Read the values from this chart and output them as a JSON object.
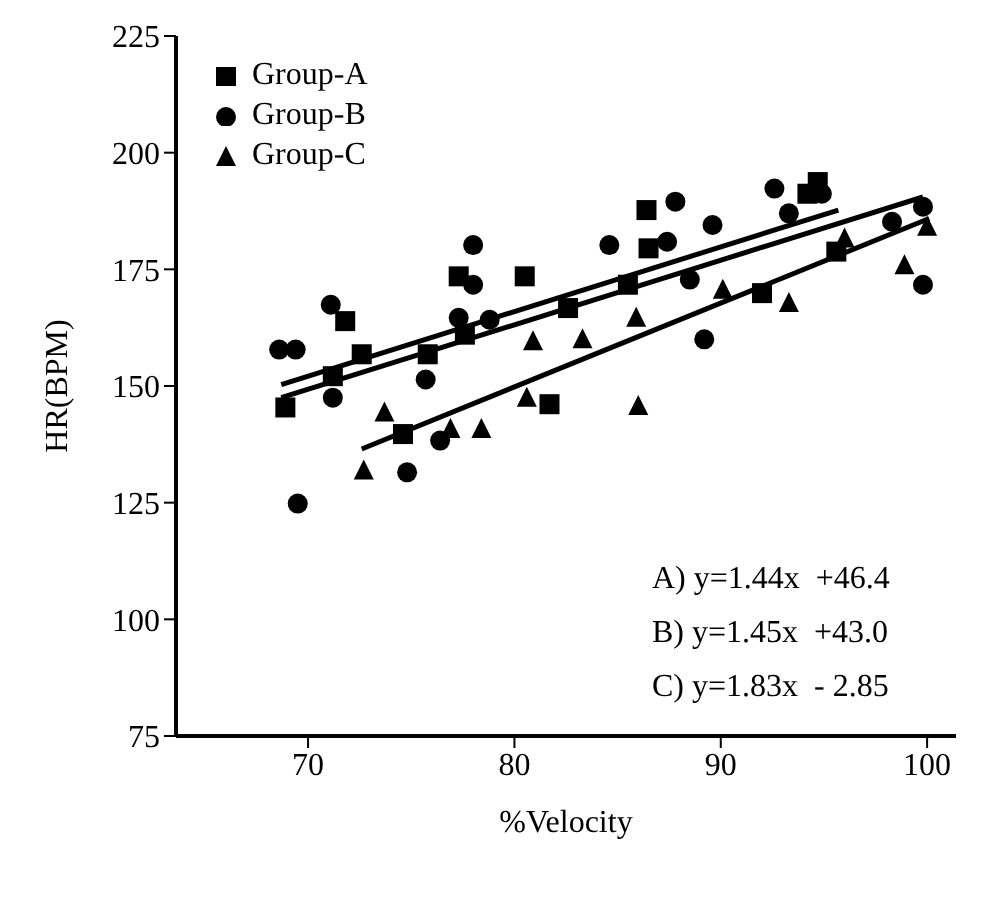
{
  "chart_data": {
    "type": "scatter",
    "xlabel": "%Velocity",
    "ylabel": "HR(BPM)",
    "xlim": [
      63.6,
      101.4
    ],
    "ylim": [
      75,
      225
    ],
    "xticks": [
      70,
      80,
      90,
      100
    ],
    "yticks": [
      75,
      100,
      125,
      150,
      175,
      200,
      225
    ],
    "legend": "top left",
    "grid": false,
    "series": [
      {
        "name": "Group-A",
        "color": "#000000",
        "marker": "square",
        "x": [
          68.9,
          71.2,
          71.8,
          72.6,
          74.6,
          75.8,
          77.3,
          77.6,
          80.5,
          81.7,
          82.6,
          85.5,
          86.4,
          86.5,
          92.0,
          94.2,
          94.7,
          95.6
        ],
        "values": [
          145.4,
          152.1,
          163.9,
          156.8,
          139.7,
          156.8,
          173.5,
          161.0,
          173.5,
          146.1,
          166.7,
          171.7,
          187.7,
          179.5,
          169.9,
          191.2,
          193.7,
          178.8
        ]
      },
      {
        "name": "Group-B",
        "color": "#000000",
        "marker": "circle",
        "x": [
          68.6,
          69.4,
          69.5,
          71.1,
          71.2,
          74.8,
          75.7,
          76.4,
          77.3,
          78.0,
          78.0,
          78.8,
          84.6,
          87.4,
          87.8,
          88.5,
          89.2,
          89.6,
          92.6,
          93.3,
          94.9,
          98.3,
          99.8,
          99.8
        ],
        "values": [
          157.8,
          157.8,
          124.8,
          167.4,
          147.5,
          131.5,
          151.4,
          138.3,
          164.6,
          180.2,
          171.7,
          164.2,
          180.2,
          180.9,
          189.5,
          172.8,
          160.0,
          184.5,
          192.3,
          187.0,
          191.2,
          185.2,
          188.4,
          171.7
        ]
      },
      {
        "name": "Group-C",
        "color": "#000000",
        "marker": "triangle",
        "x": [
          72.7,
          73.7,
          76.9,
          78.4,
          80.6,
          80.9,
          83.3,
          85.9,
          86.0,
          90.1,
          93.3,
          96.0,
          98.9,
          100.0
        ],
        "values": [
          131.9,
          144.3,
          140.8,
          140.8,
          147.5,
          159.6,
          160.0,
          164.6,
          145.7,
          170.6,
          167.8,
          181.6,
          175.9,
          184.1
        ]
      },
      {
        "type": "line",
        "color": "#000000",
        "marker": "none",
        "x": [
          68.7,
          95.7
        ],
        "values": [
          150.3,
          187.7
        ]
      },
      {
        "type": "line",
        "color": "#000000",
        "marker": "none",
        "x": [
          68.7,
          99.8
        ],
        "values": [
          147.5,
          190.5
        ]
      },
      {
        "type": "line",
        "color": "#000000",
        "marker": "none",
        "x": [
          72.6,
          100.1
        ],
        "values": [
          136.5,
          185.9
        ]
      }
    ],
    "annotations": [
      "A) y=1.44x  +46.4",
      "B) y=1.45x  +43.0",
      "C) y=1.83x  - 2.85"
    ]
  }
}
